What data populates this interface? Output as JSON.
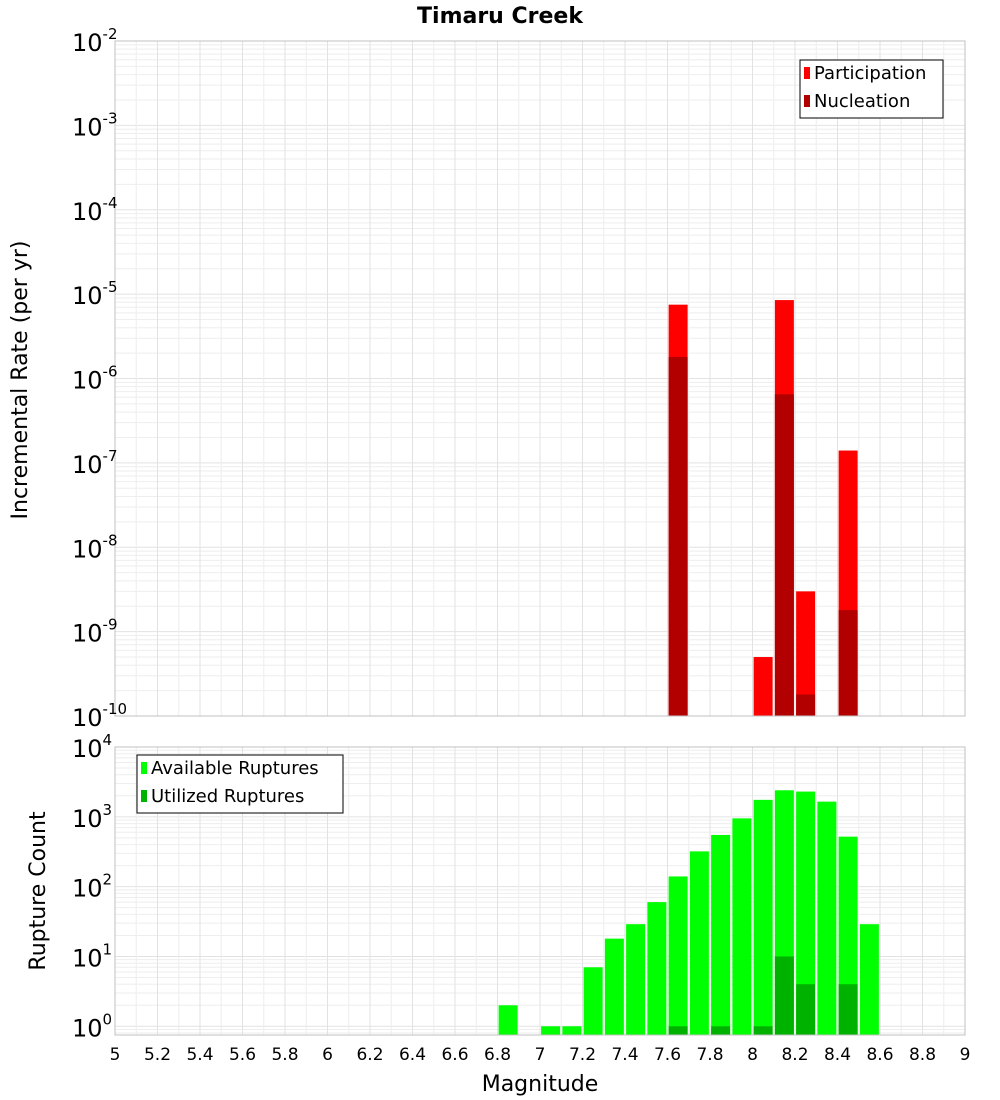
{
  "title": "Timaru Creek",
  "xlabel": "Magnitude",
  "x_ticks": [
    "5",
    "5.2",
    "5.4",
    "5.6",
    "5.8",
    "6",
    "6.2",
    "6.4",
    "6.6",
    "6.8",
    "7",
    "7.2",
    "7.4",
    "7.6",
    "7.8",
    "8",
    "8.2",
    "8.4",
    "8.6",
    "8.8",
    "9"
  ],
  "chart_data": [
    {
      "type": "bar",
      "ylabel": "Incremental Rate (per yr)",
      "yscale": "log",
      "xlim": [
        5,
        9
      ],
      "ylim": [
        1e-10,
        0.01
      ],
      "y_ticks": [
        {
          "base": "10",
          "exp": "-10"
        },
        {
          "base": "10",
          "exp": "-9"
        },
        {
          "base": "10",
          "exp": "-8"
        },
        {
          "base": "10",
          "exp": "-7"
        },
        {
          "base": "10",
          "exp": "-6"
        },
        {
          "base": "10",
          "exp": "-5"
        },
        {
          "base": "10",
          "exp": "-4"
        },
        {
          "base": "10",
          "exp": "-3"
        },
        {
          "base": "10",
          "exp": "-2"
        }
      ],
      "legend_position": "top-right",
      "series": [
        {
          "name": "Participation",
          "color": "#ff0000",
          "x": [
            7.65,
            8.05,
            8.15,
            8.25,
            8.45
          ],
          "values": [
            7.5e-06,
            5e-10,
            8.5e-06,
            3e-09,
            1.4e-07
          ]
        },
        {
          "name": "Nucleation",
          "color": "#b20000",
          "x": [
            7.65,
            8.15,
            8.25,
            8.45
          ],
          "values": [
            1.8e-06,
            6.5e-07,
            1.8e-10,
            1.8e-09
          ]
        }
      ]
    },
    {
      "type": "bar",
      "ylabel": "Rupture Count",
      "yscale": "log",
      "xlim": [
        5,
        9
      ],
      "ylim": [
        0.75,
        10000
      ],
      "y_ticks": [
        {
          "base": "10",
          "exp": "0"
        },
        {
          "base": "10",
          "exp": "1"
        },
        {
          "base": "10",
          "exp": "2"
        },
        {
          "base": "10",
          "exp": "3"
        },
        {
          "base": "10",
          "exp": "4"
        }
      ],
      "legend_position": "top-left",
      "series": [
        {
          "name": "Available Ruptures",
          "color": "#00ff00",
          "x": [
            6.85,
            6.95,
            7.05,
            7.15,
            7.25,
            7.35,
            7.45,
            7.55,
            7.65,
            7.75,
            7.85,
            7.95,
            8.05,
            8.15,
            8.25,
            8.35,
            8.45,
            8.55
          ],
          "values": [
            2,
            0,
            1,
            1,
            7,
            18,
            29,
            60,
            140,
            320,
            550,
            950,
            1750,
            2400,
            2300,
            1650,
            520,
            29
          ]
        },
        {
          "name": "Utilized Ruptures",
          "color": "#00b200",
          "x": [
            7.65,
            7.85,
            8.05,
            8.15,
            8.25,
            8.45
          ],
          "values": [
            1,
            1,
            1,
            10,
            4,
            4
          ]
        }
      ]
    }
  ]
}
